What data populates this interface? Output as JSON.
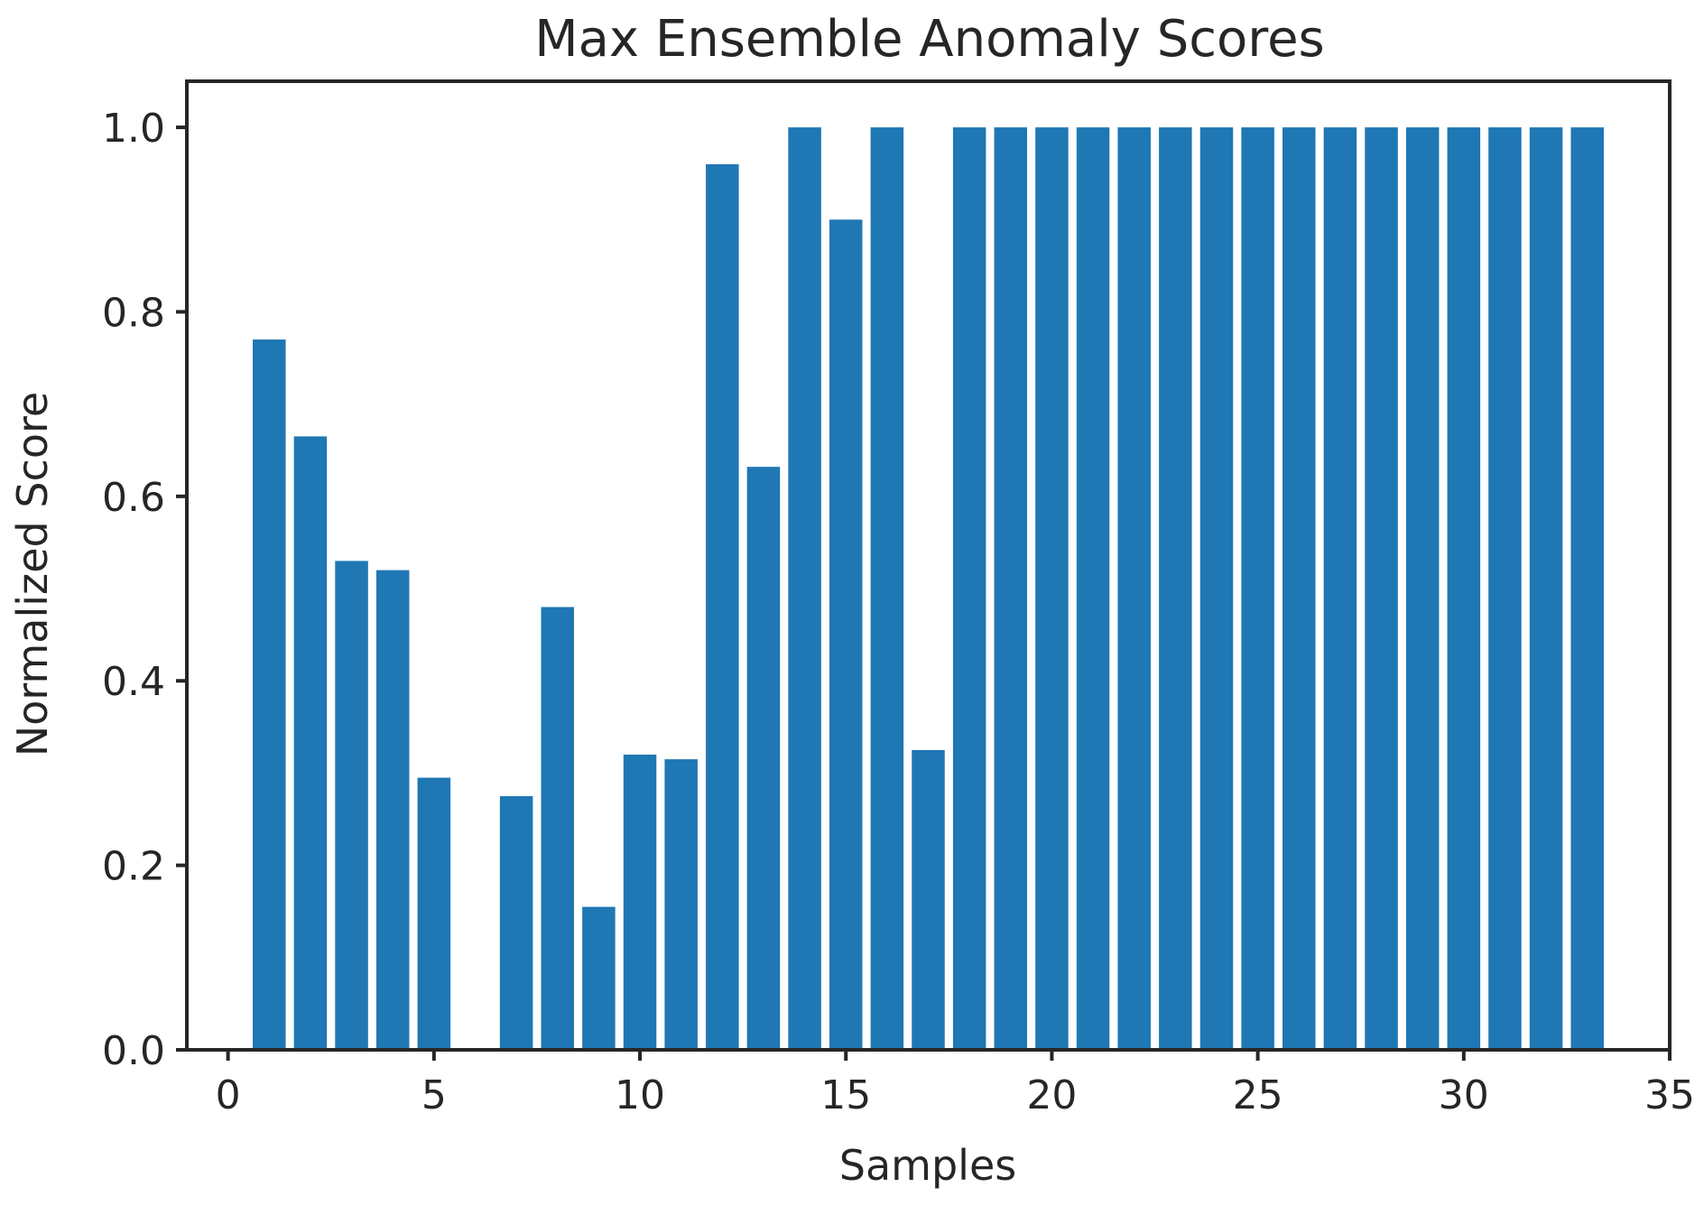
{
  "chart_data": {
    "type": "bar",
    "title": "Max Ensemble Anomaly Scores",
    "xlabel": "Samples",
    "ylabel": "Normalized Score",
    "x": [
      1,
      2,
      3,
      4,
      5,
      6,
      7,
      8,
      9,
      10,
      11,
      12,
      13,
      14,
      15,
      16,
      17,
      18,
      19,
      20,
      21,
      22,
      23,
      24,
      25,
      26,
      27,
      28,
      29,
      30,
      31,
      32,
      33
    ],
    "values": [
      0.77,
      0.665,
      0.53,
      0.52,
      0.295,
      0.0,
      0.275,
      0.48,
      0.155,
      0.32,
      0.315,
      0.96,
      0.632,
      1.0,
      0.9,
      1.0,
      0.325,
      1.0,
      1.0,
      1.0,
      1.0,
      1.0,
      1.0,
      1.0,
      1.0,
      1.0,
      1.0,
      1.0,
      1.0,
      1.0,
      1.0,
      1.0,
      1.0
    ],
    "xlim": [
      -1.0,
      35.0
    ],
    "ylim": [
      0.0,
      1.05
    ],
    "xticks": [
      0,
      5,
      10,
      15,
      20,
      25,
      30,
      35
    ],
    "xtick_labels": [
      "0",
      "5",
      "10",
      "15",
      "20",
      "25",
      "30",
      "35"
    ],
    "yticks": [
      0.0,
      0.2,
      0.4,
      0.6,
      0.8,
      1.0
    ],
    "ytick_labels": [
      "0.0",
      "0.2",
      "0.4",
      "0.6",
      "0.8",
      "1.0"
    ],
    "bar_color": "#1f77b4",
    "grid": false,
    "legend": "none"
  }
}
